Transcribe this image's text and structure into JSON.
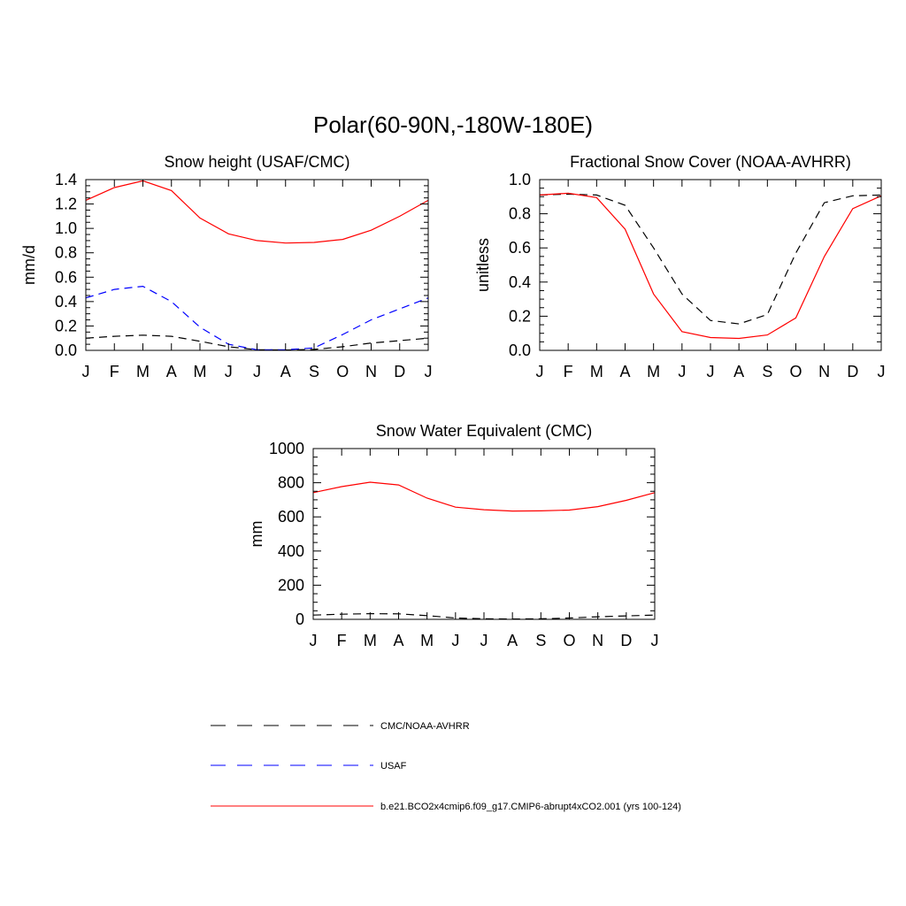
{
  "figure": {
    "title": "Polar(60-90N,-180W-180E)"
  },
  "legend": {
    "entries": [
      {
        "label": "CMC/NOAA-AVHRR",
        "color": "#000000",
        "dash": "dashed"
      },
      {
        "label": "USAF",
        "color": "#0000ff",
        "dash": "dashed"
      },
      {
        "label": "b.e21.BCO2x4cmip6.f09_g17.CMIP6-abrupt4xCO2.001 (yrs 100-124)",
        "color": "#ff0000",
        "dash": "solid"
      }
    ]
  },
  "chart_data": [
    {
      "type": "line",
      "title": "Snow height (USAF/CMC)",
      "xlabel": "",
      "ylabel": "mm/d",
      "categories": [
        "J",
        "F",
        "M",
        "A",
        "M",
        "J",
        "J",
        "A",
        "S",
        "O",
        "N",
        "D",
        "J"
      ],
      "ylim": [
        0,
        1.4
      ],
      "yticks": [
        "0.0",
        "0.2",
        "0.4",
        "0.6",
        "0.8",
        "1.0",
        "1.2",
        "1.4"
      ],
      "grid": false,
      "series": [
        {
          "name": "CMC/NOAA-AVHRR",
          "color": "#000000",
          "dash": "dashed",
          "values": [
            0.1,
            0.115,
            0.125,
            0.115,
            0.075,
            0.03,
            0.005,
            0.003,
            0.008,
            0.03,
            0.06,
            0.08,
            0.1
          ]
        },
        {
          "name": "USAF",
          "color": "#0000ff",
          "dash": "dashed",
          "values": [
            0.43,
            0.5,
            0.525,
            0.4,
            0.19,
            0.05,
            0.005,
            0.005,
            0.02,
            0.13,
            0.25,
            0.34,
            0.43
          ]
        },
        {
          "name": "b.e21.BCO2x4cmip6.f09_g17.CMIP6-abrupt4xCO2.001 (yrs 100-124)",
          "color": "#ff0000",
          "dash": "solid",
          "values": [
            1.23,
            1.335,
            1.39,
            1.31,
            1.085,
            0.955,
            0.9,
            0.88,
            0.885,
            0.91,
            0.985,
            1.1,
            1.23
          ]
        }
      ]
    },
    {
      "type": "line",
      "title": "Fractional Snow Cover (NOAA-AVHRR)",
      "xlabel": "",
      "ylabel": "unitless",
      "categories": [
        "J",
        "F",
        "M",
        "A",
        "M",
        "J",
        "J",
        "A",
        "S",
        "O",
        "N",
        "D",
        "J"
      ],
      "ylim": [
        0,
        1.0
      ],
      "yticks": [
        "0.0",
        "0.2",
        "0.4",
        "0.6",
        "0.8",
        "1.0"
      ],
      "grid": false,
      "series": [
        {
          "name": "CMC/NOAA-AVHRR",
          "color": "#000000",
          "dash": "dashed",
          "values": [
            0.91,
            0.915,
            0.91,
            0.85,
            0.6,
            0.33,
            0.175,
            0.155,
            0.21,
            0.57,
            0.865,
            0.905,
            0.91
          ]
        },
        {
          "name": "b.e21.BCO2x4cmip6.f09_g17.CMIP6-abrupt4xCO2.001 (yrs 100-124)",
          "color": "#ff0000",
          "dash": "solid",
          "values": [
            0.91,
            0.92,
            0.895,
            0.71,
            0.33,
            0.11,
            0.075,
            0.07,
            0.09,
            0.19,
            0.55,
            0.83,
            0.905
          ]
        }
      ]
    },
    {
      "type": "line",
      "title": "Snow Water Equivalent (CMC)",
      "xlabel": "",
      "ylabel": "mm",
      "categories": [
        "J",
        "F",
        "M",
        "A",
        "M",
        "J",
        "J",
        "A",
        "S",
        "O",
        "N",
        "D",
        "J"
      ],
      "ylim": [
        0,
        1000
      ],
      "yticks": [
        "0",
        "200",
        "400",
        "600",
        "800",
        "1000"
      ],
      "grid": false,
      "series": [
        {
          "name": "CMC/NOAA-AVHRR",
          "color": "#000000",
          "dash": "dashed",
          "values": [
            25,
            30,
            33,
            32,
            22,
            8,
            3,
            2,
            3,
            8,
            15,
            20,
            25
          ]
        },
        {
          "name": "b.e21.BCO2x4cmip6.f09_g17.CMIP6-abrupt4xCO2.001 (yrs 100-124)",
          "color": "#ff0000",
          "dash": "solid",
          "values": [
            742,
            777,
            803,
            787,
            710,
            657,
            642,
            634,
            635,
            640,
            660,
            697,
            742
          ]
        }
      ]
    }
  ]
}
